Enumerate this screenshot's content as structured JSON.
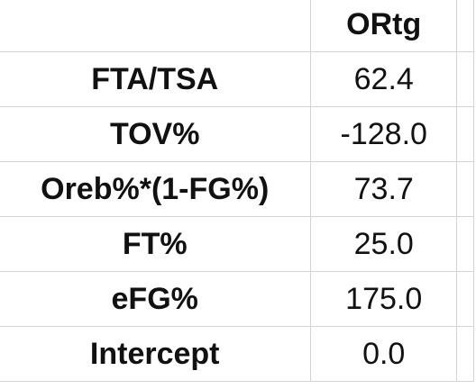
{
  "sheet": {
    "header": {
      "label": "",
      "value": "ORtg"
    },
    "rows": [
      {
        "label": "FTA/TSA",
        "value": "62.4"
      },
      {
        "label": "TOV%",
        "value": "-128.0"
      },
      {
        "label": "Oreb%*(1-FG%)",
        "value": "73.7"
      },
      {
        "label": "FT%",
        "value": "25.0"
      },
      {
        "label": "eFG%",
        "value": "175.0"
      },
      {
        "label": "Intercept",
        "value": "0.0"
      }
    ]
  }
}
